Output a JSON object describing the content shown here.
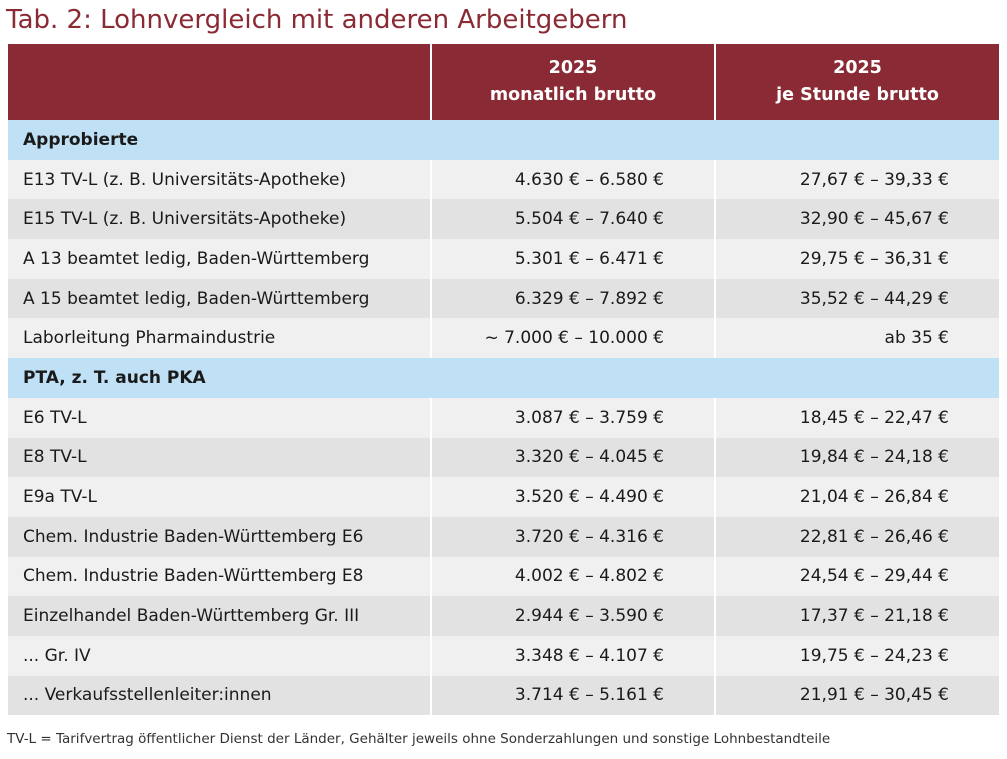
{
  "title": "Tab. 2: Lohnvergleich mit anderen Arbeitgebern",
  "header": {
    "col1": "",
    "col2_line1": "2025",
    "col2_line2": "monatlich brutto",
    "col3_line1": "2025",
    "col3_line2": "je Stunde brutto"
  },
  "groups": [
    {
      "label": "Approbierte",
      "rows": [
        {
          "name": "E13 TV-L (z. B. Universitäts-Apotheke)",
          "monthly": "4.630 € – 6.580 €",
          "hourly": "27,67 € – 39,33 €"
        },
        {
          "name": "E15 TV-L (z. B. Universitäts-Apotheke)",
          "monthly": "5.504 € – 7.640 €",
          "hourly": "32,90 € – 45,67 €"
        },
        {
          "name": "A 13 beamtet ledig, Baden-Württemberg",
          "monthly": "5.301 € – 6.471 €",
          "hourly": "29,75 € – 36,31 €"
        },
        {
          "name": "A 15 beamtet ledig, Baden-Württemberg",
          "monthly": "6.329 € – 7.892 €",
          "hourly": "35,52 € – 44,29 €"
        },
        {
          "name": "Laborleitung Pharmaindustrie",
          "monthly": "~ 7.000 € – 10.000 €",
          "hourly": "ab 35 €"
        }
      ]
    },
    {
      "label": "PTA, z. T. auch PKA",
      "rows": [
        {
          "name": "E6 TV-L",
          "monthly": "3.087 € – 3.759 €",
          "hourly": "18,45 € – 22,47 €"
        },
        {
          "name": "E8 TV-L",
          "monthly": "3.320 € – 4.045 €",
          "hourly": "19,84 € – 24,18 €"
        },
        {
          "name": "E9a TV-L",
          "monthly": "3.520 € – 4.490 €",
          "hourly": "21,04 € – 26,84 €"
        },
        {
          "name": "Chem. Industrie Baden-Württemberg E6",
          "monthly": "3.720 € – 4.316 €",
          "hourly": "22,81 € – 26,46 €"
        },
        {
          "name": "Chem. Industrie Baden-Württemberg E8",
          "monthly": "4.002 € – 4.802 €",
          "hourly": "24,54 € – 29,44 €"
        },
        {
          "name": "Einzelhandel Baden-Württemberg Gr. III",
          "monthly": "2.944 € – 3.590 €",
          "hourly": "17,37 € – 21,18 €"
        },
        {
          "name": "... Gr. IV",
          "monthly": "3.348 € – 4.107 €",
          "hourly": "19,75 € – 24,23 €"
        },
        {
          "name": "... Verkaufsstellenleiter:innen",
          "monthly": "3.714 € – 5.161 €",
          "hourly": "21,91 € – 30,45 €"
        }
      ]
    }
  ],
  "footnote": "TV-L = Tarifvertrag öffentlicher Dienst der Länder, Gehälter jeweils ohne Sonderzahlungen und sonstige Lohnbestandteile",
  "colors": {
    "header_bg": "#8a2a34",
    "title_color": "#8a2a34",
    "group_bg": "#bfe0f5",
    "row_light": "#f0f0f0",
    "row_dark": "#e2e2e2"
  }
}
